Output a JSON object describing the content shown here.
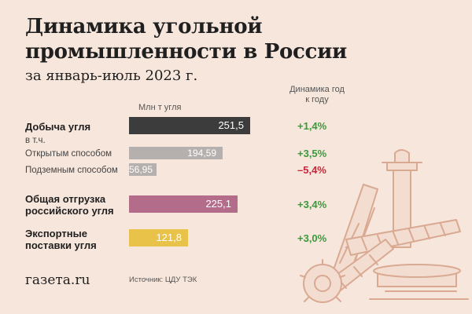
{
  "title": "Динамика угольной промышленности в России",
  "subtitle": "за январь-июль 2023 г.",
  "units_header": "Млн т угля",
  "dynamics_header": "Динамика год к году",
  "sub_caption": "в т.ч.",
  "chart_data": {
    "type": "bar",
    "orientation": "horizontal",
    "categories": [
      "Добыча угля",
      "Открытым способом",
      "Подземным способом",
      "Общая отгрузка российского угля",
      "Экспортные поставки угля"
    ],
    "values": [
      251.5,
      194.59,
      56.95,
      225.1,
      121.8
    ],
    "value_labels": [
      "251,5",
      "194,59",
      "56,95",
      "225,1",
      "121,8"
    ],
    "changes": [
      "+1,4%",
      "+3,5%",
      "–5,4%",
      "+3,4%",
      "+3,0%"
    ],
    "change_sign": [
      "pos",
      "pos",
      "neg",
      "pos",
      "pos"
    ],
    "colors": [
      "#3c3c3c",
      "#b5b0ad",
      "#b5b0ad",
      "#b36d8b",
      "#e9c24a"
    ],
    "xlim": [
      0,
      251.5
    ]
  },
  "logo": "газета.ru",
  "source": "Источник: ЦДУ ТЭК"
}
